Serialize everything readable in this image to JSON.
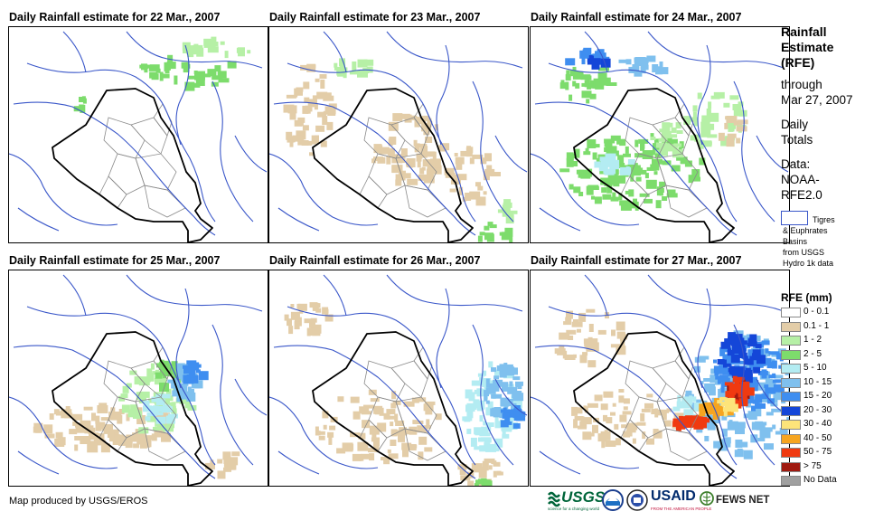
{
  "panels": [
    {
      "title": "Daily Rainfall estimate for 22 Mar., 2007"
    },
    {
      "title": "Daily Rainfall estimate for 23 Mar., 2007"
    },
    {
      "title": "Daily Rainfall estimate for 24 Mar., 2007"
    },
    {
      "title": "Daily Rainfall estimate for 25 Mar., 2007"
    },
    {
      "title": "Daily Rainfall estimate for 26 Mar., 2007"
    },
    {
      "title": "Daily Rainfall estimate for 27 Mar., 2007"
    }
  ],
  "legend": {
    "title_lines": [
      "Rainfall",
      "Estimate",
      "(RFE)"
    ],
    "through": "through",
    "date": "Mar 27, 2007",
    "daily": "Daily",
    "totals": "Totals",
    "data_label": "Data:",
    "source1": "NOAA-",
    "source2": "RFE2.0",
    "basin_line1": "Tigres",
    "basin_line2": "& Euphrates",
    "basin_line3": "Basins",
    "basin_line4": "from USGS",
    "basin_line5": "Hydro 1k data",
    "rfe_header": "RFE (mm)",
    "classes": [
      {
        "label": "0 - 0.1",
        "color": "#ffffff"
      },
      {
        "label": "0.1 - 1",
        "color": "#e3cda8"
      },
      {
        "label": "1 - 2",
        "color": "#b6f0a6"
      },
      {
        "label": "2 - 5",
        "color": "#7ddc6c"
      },
      {
        "label": "5 - 10",
        "color": "#b3ecf2"
      },
      {
        "label": "10 - 15",
        "color": "#7fc0ee"
      },
      {
        "label": "15 - 20",
        "color": "#3f8ef0"
      },
      {
        "label": "20 - 30",
        "color": "#1446d8"
      },
      {
        "label": "30 - 40",
        "color": "#fde47a"
      },
      {
        "label": "40 - 50",
        "color": "#f6a520"
      },
      {
        "label": "50 - 75",
        "color": "#f03a10"
      },
      {
        "label": "> 75",
        "color": "#a01a10"
      },
      {
        "label": "No Data",
        "color": "#a0a0a0"
      }
    ]
  },
  "footer": {
    "credit": "Map produced by USGS/EROS",
    "usgs": "USGS",
    "usgs_tag": "science for a changing world",
    "usaid": "USAID",
    "usaid_tag": "FROM THE AMERICAN PEOPLE",
    "fews": "FEWS NET"
  }
}
